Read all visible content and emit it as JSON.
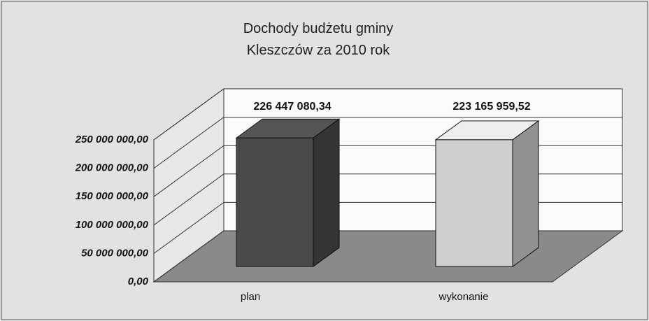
{
  "chart_data": {
    "type": "bar3d",
    "title": "Dochody budżetu gminy Kleszczów za 2010 rok",
    "categories": [
      "plan",
      "wykonanie"
    ],
    "values": [
      226447080.34,
      223165959.52
    ],
    "value_labels": [
      "226 447 080,34",
      "223 165 959,52"
    ],
    "colors": [
      "#4a4a4a",
      "#cfcfcf"
    ],
    "ylim": [
      0,
      250000000
    ],
    "yticks": [
      {
        "value": 0,
        "label": "0,00"
      },
      {
        "value": 50000000,
        "label": "50 000 000,00"
      },
      {
        "value": 100000000,
        "label": "100 000 000,00"
      },
      {
        "value": 150000000,
        "label": "150 000 000,00"
      },
      {
        "value": 200000000,
        "label": "200 000 000,00"
      },
      {
        "value": 250000000,
        "label": "250 000 000,00"
      }
    ],
    "grid": true
  }
}
